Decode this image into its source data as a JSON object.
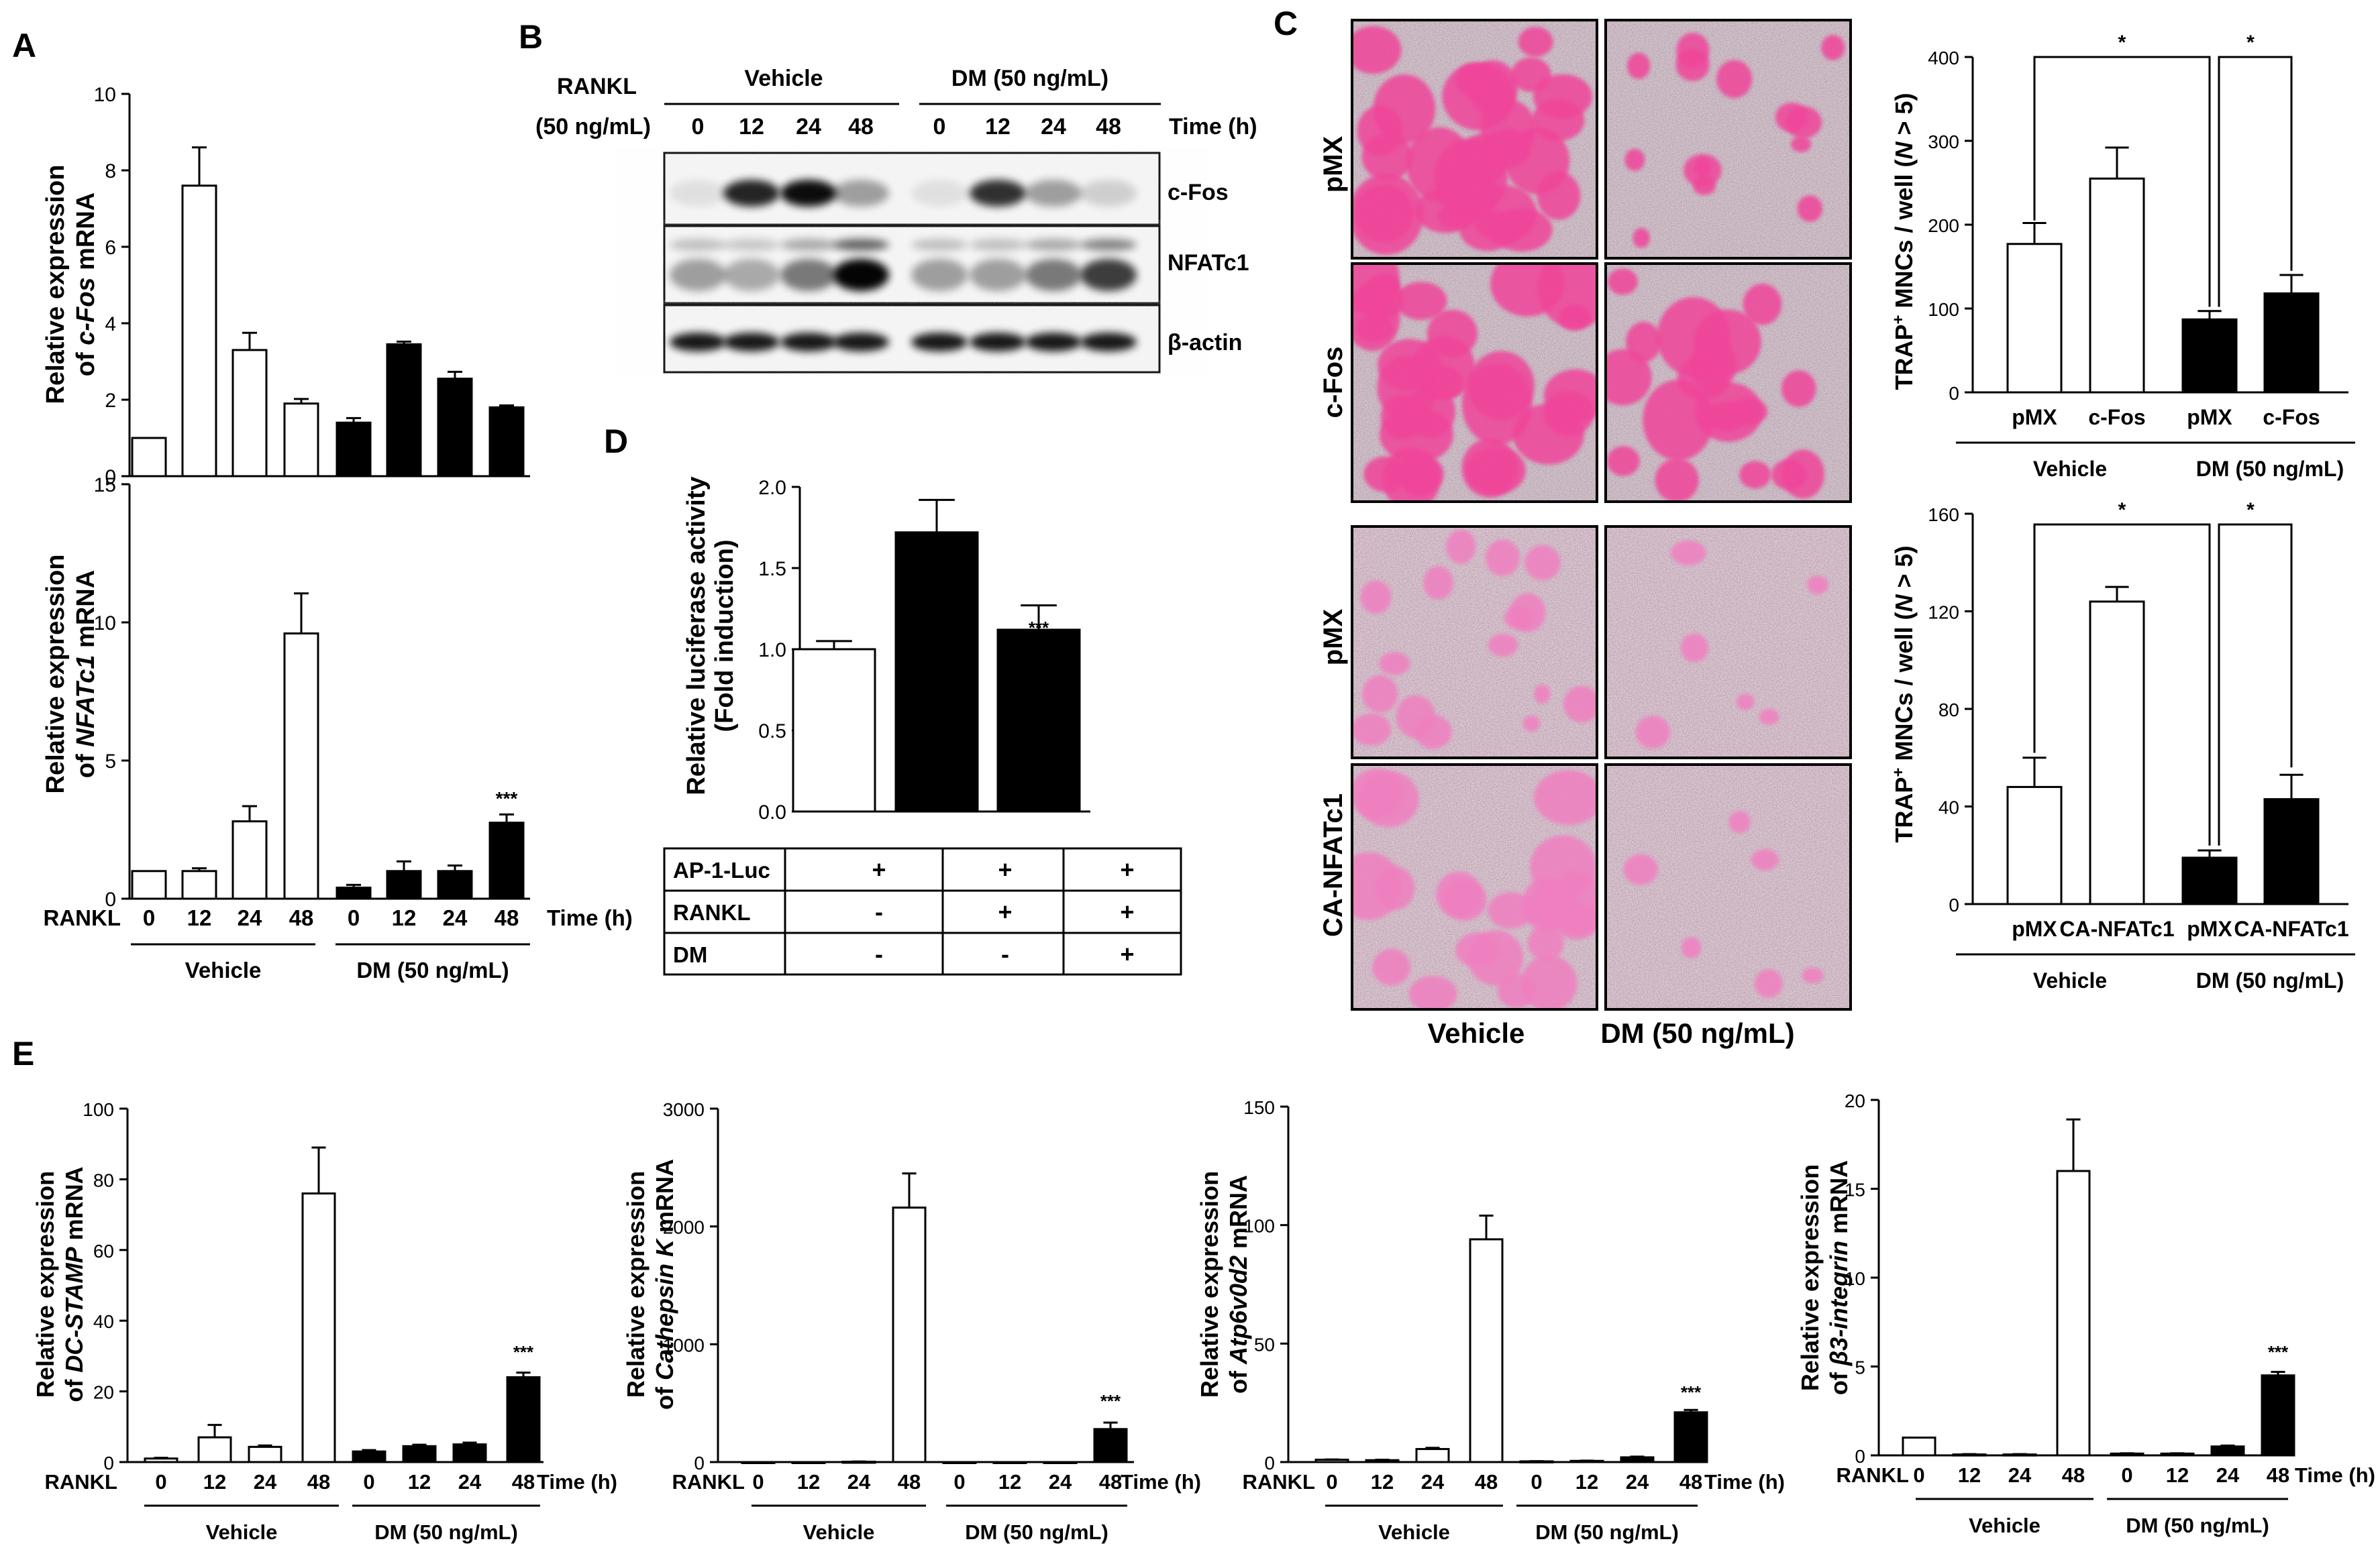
{
  "panels": {
    "A": {
      "letter": "A",
      "top": {
        "ylabel_line1": "Relative expression",
        "ylabel_prefix": "of ",
        "ylabel_gene": "c-Fos",
        "ylabel_suffix": " mRNA",
        "yticks": [
          "0",
          "2",
          "4",
          "6",
          "8",
          "10"
        ],
        "star": "***"
      },
      "bottom": {
        "ylabel_line1": "Relative expression",
        "ylabel_prefix": "of ",
        "ylabel_gene": "NFATc1",
        "ylabel_suffix": " mRNA",
        "yticks": [
          "0",
          "5",
          "10",
          "15"
        ],
        "star": "***"
      },
      "xaxis": {
        "row_label": "RANKL",
        "times": [
          "0",
          "12",
          "24",
          "48",
          "0",
          "12",
          "24",
          "48"
        ],
        "unit": "Time (h)",
        "group1": "Vehicle",
        "group2": "DM  (50 ng/mL)"
      }
    },
    "B": {
      "letter": "B",
      "rankl_line1": "RANKL",
      "rankl_line2": "(50 ng/mL)",
      "group1": "Vehicle",
      "group2": "DM (50 ng/mL)",
      "times": [
        "0",
        "12",
        "24",
        "48",
        "0",
        "12",
        "24",
        "48"
      ],
      "unit": "Time (h)",
      "bands": [
        "c-Fos",
        "NFATc1",
        "β-actin"
      ]
    },
    "C": {
      "letter": "C",
      "rows": [
        "pMX",
        "c-Fos",
        "pMX",
        "CA-NFATc1"
      ],
      "col1": "Vehicle",
      "col2": "DM (50 ng/mL)",
      "top_chart": {
        "ylabel_pre": "TRAP",
        "ylabel_sup": "+",
        "ylabel_mid": " MNCs / well (",
        "ylabel_n": "N",
        "ylabel_post": " > 5)",
        "yticks": [
          "0",
          "100",
          "200",
          "300",
          "400"
        ],
        "xlabels": [
          "pMX",
          "c-Fos",
          "pMX",
          "c-Fos"
        ],
        "group1": "Vehicle",
        "group2": "DM (50 ng/mL)",
        "sig": [
          "*",
          "*"
        ]
      },
      "bottom_chart": {
        "ylabel_pre": "TRAP",
        "ylabel_sup": "+",
        "ylabel_mid": " MNCs / well (",
        "ylabel_n": "N",
        "ylabel_post": " > 5)",
        "yticks": [
          "0",
          "40",
          "80",
          "120",
          "160"
        ],
        "xlabels": [
          "pMX",
          "CA-NFATc1",
          "pMX",
          "CA-NFATc1"
        ],
        "group1": "Vehicle",
        "group2": "DM (50 ng/mL)",
        "sig": [
          "*",
          "*"
        ]
      }
    },
    "D": {
      "letter": "D",
      "ylabel_line1": "Relative luciferase activity",
      "ylabel_line2": "(Fold induction)",
      "yticks": [
        "0.0",
        "0.5",
        "1.0",
        "1.5",
        "2.0"
      ],
      "annotations": [
        "###",
        "***"
      ],
      "table": [
        {
          "label": "AP-1-Luc",
          "cells": [
            "+",
            "+",
            "+"
          ]
        },
        {
          "label": "RANKL",
          "cells": [
            "-",
            "+",
            "+"
          ]
        },
        {
          "label": "DM",
          "cells": [
            "-",
            "-",
            "+"
          ]
        }
      ]
    },
    "E": {
      "letter": "E",
      "charts": [
        {
          "ylabel_line1": "Relative expression",
          "ylabel_prefix": "of ",
          "ylabel_gene": "DC-STAMP",
          "ylabel_suffix": " mRNA",
          "yticks": [
            "0",
            "20",
            "40",
            "60",
            "80",
            "100"
          ],
          "star": "***"
        },
        {
          "ylabel_line1": "Relative expression",
          "ylabel_prefix": "of ",
          "ylabel_gene": "Cathepsin K",
          "ylabel_suffix": " mRNA",
          "yticks": [
            "0",
            "1000",
            "2000",
            "3000"
          ],
          "star": "***"
        },
        {
          "ylabel_line1": "Relative expression",
          "ylabel_prefix": "of ",
          "ylabel_gene": "Atp6v0d2",
          "ylabel_suffix": " mRNA",
          "yticks": [
            "0",
            "50",
            "100",
            "150"
          ],
          "star": "***"
        },
        {
          "ylabel_line1": "Relative expression",
          "ylabel_prefix": "of ",
          "ylabel_gene": "β3-integrin",
          "ylabel_suffix": " mRNA",
          "yticks": [
            "0",
            "5",
            "10",
            "15",
            "20"
          ],
          "star": "***"
        }
      ],
      "xaxis": {
        "row_label": "RANKL",
        "times": [
          "0",
          "12",
          "24",
          "48",
          "0",
          "12",
          "24",
          "48"
        ],
        "unit": "Time (h)",
        "group1": "Vehicle",
        "group2": "DM  (50 ng/mL)"
      }
    }
  },
  "chart_data": [
    {
      "id": "A-cFos",
      "type": "bar",
      "categories": [
        "0",
        "12",
        "24",
        "48",
        "0",
        "12",
        "24",
        "48"
      ],
      "groups": [
        "Vehicle",
        "Vehicle",
        "Vehicle",
        "Vehicle",
        "DM (50 ng/mL)",
        "DM (50 ng/mL)",
        "DM (50 ng/mL)",
        "DM (50 ng/mL)"
      ],
      "values": [
        1.0,
        7.6,
        3.3,
        1.9,
        1.4,
        3.45,
        2.55,
        1.8
      ],
      "errors": [
        0,
        1.0,
        0.45,
        0.12,
        0.12,
        0.07,
        0.18,
        0.05
      ],
      "fill": [
        "#ffffff",
        "#ffffff",
        "#ffffff",
        "#ffffff",
        "#000000",
        "#000000",
        "#000000",
        "#000000"
      ],
      "ylim": [
        0,
        10
      ],
      "xlabel": "Time (h)"
    },
    {
      "id": "A-NFATc1",
      "type": "bar",
      "categories": [
        "0",
        "12",
        "24",
        "48",
        "0",
        "12",
        "24",
        "48"
      ],
      "values": [
        1.0,
        1.0,
        2.8,
        9.6,
        0.4,
        1.0,
        1.0,
        2.75
      ],
      "errors": [
        0,
        0.1,
        0.55,
        1.45,
        0.1,
        0.35,
        0.2,
        0.3
      ],
      "fill": [
        "#ffffff",
        "#ffffff",
        "#ffffff",
        "#ffffff",
        "#000000",
        "#000000",
        "#000000",
        "#000000"
      ],
      "ylim": [
        0,
        15
      ],
      "xlabel": "Time (h)"
    },
    {
      "id": "C-top",
      "type": "bar",
      "categories": [
        "pMX",
        "c-Fos",
        "pMX",
        "c-Fos"
      ],
      "values": [
        177,
        255,
        87,
        118
      ],
      "errors": [
        25,
        37,
        10,
        22
      ],
      "fill": [
        "#ffffff",
        "#ffffff",
        "#000000",
        "#000000"
      ],
      "ylim": [
        0,
        400
      ]
    },
    {
      "id": "C-bottom",
      "type": "bar",
      "categories": [
        "pMX",
        "CA-NFATc1",
        "pMX",
        "CA-NFATc1"
      ],
      "values": [
        48,
        124,
        19,
        43
      ],
      "errors": [
        12,
        6,
        3,
        10
      ],
      "fill": [
        "#ffffff",
        "#ffffff",
        "#000000",
        "#000000"
      ],
      "ylim": [
        0,
        160
      ]
    },
    {
      "id": "D",
      "type": "bar",
      "categories": [
        "AP-1-Luc",
        "AP-1-Luc + RANKL",
        "AP-1-Luc + RANKL + DM"
      ],
      "values": [
        1.0,
        1.72,
        1.12
      ],
      "errors": [
        0.05,
        0.2,
        0.15
      ],
      "fill": [
        "#ffffff",
        "#000000",
        "#000000"
      ],
      "ylim": [
        0,
        2.0
      ]
    },
    {
      "id": "E-DC-STAMP",
      "type": "bar",
      "categories": [
        "0",
        "12",
        "24",
        "48",
        "0",
        "12",
        "24",
        "48"
      ],
      "values": [
        1.0,
        7.0,
        4.3,
        76,
        3.0,
        4.5,
        5.0,
        24
      ],
      "errors": [
        0.2,
        3.5,
        0.4,
        13,
        0.4,
        0.4,
        0.5,
        1.3
      ],
      "fill": [
        "#ffffff",
        "#ffffff",
        "#ffffff",
        "#ffffff",
        "#000000",
        "#000000",
        "#000000",
        "#000000"
      ],
      "ylim": [
        0,
        100
      ]
    },
    {
      "id": "E-CathepsinK",
      "type": "bar",
      "categories": [
        "0",
        "12",
        "24",
        "48",
        "0",
        "12",
        "24",
        "48"
      ],
      "values": [
        0,
        0,
        3,
        2160,
        0,
        0,
        0,
        280
      ],
      "errors": [
        0,
        0,
        2,
        290,
        0,
        0,
        0,
        55
      ],
      "fill": [
        "#ffffff",
        "#ffffff",
        "#ffffff",
        "#ffffff",
        "#000000",
        "#000000",
        "#000000",
        "#000000"
      ],
      "ylim": [
        0,
        3000
      ]
    },
    {
      "id": "E-Atp6v0d2",
      "type": "bar",
      "categories": [
        "0",
        "12",
        "24",
        "48",
        "0",
        "12",
        "24",
        "48"
      ],
      "values": [
        1.0,
        0.8,
        5.5,
        94,
        0.3,
        0.5,
        2.0,
        21
      ],
      "errors": [
        0.1,
        0.2,
        0.5,
        10,
        0.1,
        0.1,
        0.3,
        1.0
      ],
      "fill": [
        "#ffffff",
        "#ffffff",
        "#ffffff",
        "#ffffff",
        "#000000",
        "#000000",
        "#000000",
        "#000000"
      ],
      "ylim": [
        0,
        150
      ]
    },
    {
      "id": "E-b3integrin",
      "type": "bar",
      "categories": [
        "0",
        "12",
        "24",
        "48",
        "0",
        "12",
        "24",
        "48"
      ],
      "values": [
        1.0,
        0.05,
        0.05,
        16,
        0.1,
        0.1,
        0.5,
        4.5
      ],
      "errors": [
        0,
        0.02,
        0.02,
        2.9,
        0.02,
        0.02,
        0.05,
        0.2
      ],
      "fill": [
        "#ffffff",
        "#ffffff",
        "#ffffff",
        "#ffffff",
        "#000000",
        "#000000",
        "#000000",
        "#000000"
      ],
      "ylim": [
        0,
        20
      ]
    }
  ]
}
